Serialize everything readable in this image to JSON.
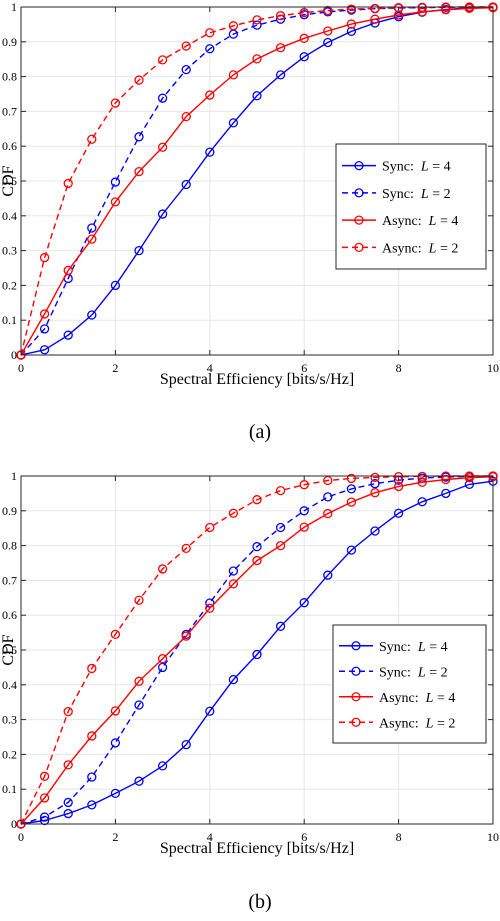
{
  "colors": {
    "blue": "#0000ff",
    "red": "#ff0000",
    "grid": "#e6e6e6",
    "axis": "#262626"
  },
  "chart_data": [
    {
      "type": "line",
      "caption": "(a)",
      "xlabel": "Spectral Efficiency [bits/s/Hz]",
      "ylabel": "CDF",
      "xlim": [
        0,
        10
      ],
      "ylim": [
        0,
        1
      ],
      "xticks": [
        0,
        2,
        4,
        6,
        8,
        10
      ],
      "yticks": [
        0,
        0.1,
        0.2,
        0.3,
        0.4,
        0.5,
        0.6,
        0.7,
        0.8,
        0.9,
        1
      ],
      "grid": true,
      "legend_position": "right-middle",
      "x": [
        0,
        0.5,
        1,
        1.5,
        2,
        2.5,
        3,
        3.5,
        4,
        4.5,
        5,
        5.5,
        6,
        6.5,
        7,
        7.5,
        8,
        8.5,
        9,
        9.5,
        10
      ],
      "series": [
        {
          "name": "Sync: L = 4",
          "label_prefix": "Sync:",
          "label_var": "L",
          "label_value": "= 4",
          "color": "blue",
          "dash": "solid",
          "values": [
            0,
            0.015,
            0.057,
            0.115,
            0.2,
            0.3,
            0.405,
            0.49,
            0.583,
            0.667,
            0.745,
            0.805,
            0.857,
            0.898,
            0.93,
            0.954,
            0.972,
            0.985,
            0.993,
            0.997,
            0.999
          ]
        },
        {
          "name": "Sync: L = 2",
          "label_prefix": "Sync:",
          "label_var": "L",
          "label_value": "= 2",
          "color": "blue",
          "dash": "dashed",
          "values": [
            0,
            0.075,
            0.22,
            0.365,
            0.497,
            0.627,
            0.738,
            0.82,
            0.88,
            0.922,
            0.948,
            0.965,
            0.978,
            0.986,
            0.991,
            0.995,
            0.997,
            0.998,
            0.999,
            1,
            1
          ]
        },
        {
          "name": "Async: L = 4",
          "label_prefix": "Async:",
          "label_var": "L",
          "label_value": "= 4",
          "color": "red",
          "dash": "solid",
          "values": [
            0,
            0.118,
            0.243,
            0.333,
            0.44,
            0.527,
            0.597,
            0.685,
            0.747,
            0.805,
            0.851,
            0.883,
            0.91,
            0.931,
            0.951,
            0.965,
            0.977,
            0.986,
            0.992,
            0.996,
            0.998
          ]
        },
        {
          "name": "Async: L = 2",
          "label_prefix": "Async:",
          "label_var": "L",
          "label_value": "= 2",
          "color": "red",
          "dash": "dashed",
          "values": [
            0,
            0.28,
            0.493,
            0.62,
            0.724,
            0.79,
            0.848,
            0.888,
            0.926,
            0.946,
            0.963,
            0.975,
            0.984,
            0.99,
            0.994,
            0.996,
            0.998,
            0.999,
            1,
            1,
            1
          ]
        }
      ]
    },
    {
      "type": "line",
      "caption": "(b)",
      "xlabel": "Spectral Efficiency [bits/s/Hz]",
      "ylabel": "CDF",
      "xlim": [
        0,
        10
      ],
      "ylim": [
        0,
        1
      ],
      "xticks": [
        0,
        2,
        4,
        6,
        8,
        10
      ],
      "yticks": [
        0,
        0.1,
        0.2,
        0.3,
        0.4,
        0.5,
        0.6,
        0.7,
        0.8,
        0.9,
        1
      ],
      "grid": true,
      "legend_position": "bottom-right",
      "x": [
        0,
        0.5,
        1,
        1.5,
        2,
        2.5,
        3,
        3.5,
        4,
        4.5,
        5,
        5.5,
        6,
        6.5,
        7,
        7.5,
        8,
        8.5,
        9,
        9.5,
        10
      ],
      "series": [
        {
          "name": "Sync: L = 4",
          "label_prefix": "Sync:",
          "label_var": "L",
          "label_value": "= 4",
          "color": "blue",
          "dash": "solid",
          "values": [
            0,
            0.01,
            0.03,
            0.055,
            0.088,
            0.123,
            0.167,
            0.228,
            0.324,
            0.415,
            0.487,
            0.568,
            0.636,
            0.715,
            0.787,
            0.842,
            0.893,
            0.926,
            0.95,
            0.976,
            0.985
          ]
        },
        {
          "name": "Sync: L = 2",
          "label_prefix": "Sync:",
          "label_var": "L",
          "label_value": "= 2",
          "color": "blue",
          "dash": "dashed",
          "values": [
            0,
            0.02,
            0.062,
            0.135,
            0.233,
            0.342,
            0.45,
            0.545,
            0.635,
            0.727,
            0.797,
            0.852,
            0.9,
            0.94,
            0.963,
            0.978,
            0.988,
            0.994,
            0.997,
            0.999,
            1
          ]
        },
        {
          "name": "Async: L = 4",
          "label_prefix": "Async:",
          "label_var": "L",
          "label_value": "= 4",
          "color": "red",
          "dash": "solid",
          "values": [
            0,
            0.075,
            0.17,
            0.253,
            0.325,
            0.41,
            0.475,
            0.54,
            0.62,
            0.69,
            0.757,
            0.8,
            0.853,
            0.892,
            0.925,
            0.952,
            0.97,
            0.982,
            0.99,
            0.995,
            0.998
          ]
        },
        {
          "name": "Async: L = 2",
          "label_prefix": "Async:",
          "label_var": "L",
          "label_value": "= 2",
          "color": "red",
          "dash": "dashed",
          "values": [
            0,
            0.137,
            0.323,
            0.447,
            0.545,
            0.643,
            0.733,
            0.792,
            0.852,
            0.893,
            0.932,
            0.958,
            0.975,
            0.987,
            0.993,
            0.996,
            0.998,
            0.999,
            1,
            1,
            1
          ]
        }
      ]
    }
  ]
}
